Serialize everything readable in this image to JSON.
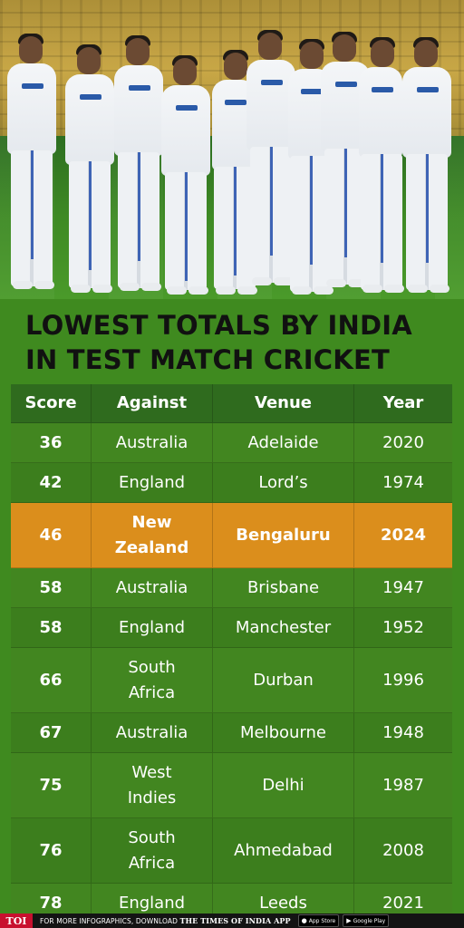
{
  "title": {
    "line1": "LOWEST TOTALS BY INDIA",
    "line2": "IN TEST MATCH CRICKET"
  },
  "table": {
    "headers": [
      "Score",
      "Against",
      "Venue",
      "Year"
    ],
    "rows": [
      {
        "score": "36",
        "against": "Australia",
        "venue": "Adelaide",
        "year": "2020"
      },
      {
        "score": "42",
        "against": "England",
        "venue": "Lord’s",
        "year": "1974"
      },
      {
        "score": "46",
        "against": "New Zealand",
        "venue": "Bengaluru",
        "year": "2024"
      },
      {
        "score": "58",
        "against": "Australia",
        "venue": "Brisbane",
        "year": "1947"
      },
      {
        "score": "58",
        "against": "England",
        "venue": "Manchester",
        "year": "1952"
      },
      {
        "score": "66",
        "against": "South Africa",
        "venue": "Durban",
        "year": "1996"
      },
      {
        "score": "67",
        "against": "Australia",
        "venue": "Melbourne",
        "year": "1948"
      },
      {
        "score": "75",
        "against": "West Indies",
        "venue": "Delhi",
        "year": "1987"
      },
      {
        "score": "76",
        "against": "South Africa",
        "venue": "Ahmedabad",
        "year": "2008"
      },
      {
        "score": "78",
        "against": "England",
        "venue": "Leeds",
        "year": "2021"
      }
    ]
  },
  "footer": {
    "logo": "TOI",
    "text_prefix": "FOR MORE INFOGRAPHICS, DOWNLOAD",
    "brand": "THE TIMES OF INDIA APP",
    "app_store": "App Store",
    "google_play": "Google Play"
  },
  "colors": {
    "header_bg": "#2f6b1e",
    "row_bg": "#428620",
    "highlight_bg": "#db8e1c",
    "text": "#ffffff",
    "title": "#111111"
  }
}
